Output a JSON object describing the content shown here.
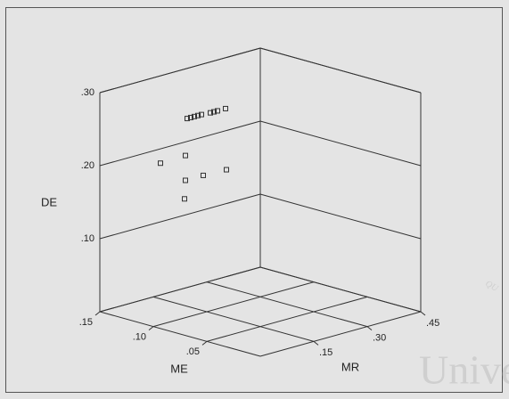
{
  "chart_data": {
    "type": "scatter3d",
    "x_label": "ME",
    "y_label": "MR",
    "z_label": "DE",
    "xlim": [
      0,
      0.15
    ],
    "xticks": [
      {
        "value": 0.15,
        "label": ".15"
      },
      {
        "value": 0.1,
        "label": ".10"
      },
      {
        "value": 0.05,
        "label": ".05"
      }
    ],
    "ylim": [
      0,
      0.45
    ],
    "yticks": [
      {
        "value": 0.15,
        "label": ".15"
      },
      {
        "value": 0.3,
        "label": ".30"
      },
      {
        "value": 0.45,
        "label": ".45"
      }
    ],
    "zlim": [
      0,
      0.3
    ],
    "zticks": [
      {
        "value": 0.3,
        "label": ".30"
      },
      {
        "value": 0.2,
        "label": ".20"
      },
      {
        "value": 0.1,
        "label": ".10"
      }
    ],
    "grid": true,
    "color": "#333333",
    "x": [
      0.1,
      0.1,
      0.1,
      0.1,
      0.1,
      0.1,
      0.1,
      0.1,
      0.1,
      0.1,
      0.1,
      0.1,
      0.1,
      0.1,
      0.1
    ],
    "y": [
      0.02,
      0.09,
      0.205,
      0.14,
      0.09,
      0.0875,
      0.095,
      0.105,
      0.115,
      0.125,
      0.135,
      0.16,
      0.17,
      0.18,
      0.2025
    ],
    "z": [
      0.221,
      0.222,
      0.187,
      0.188,
      0.188,
      0.163,
      0.272,
      0.272,
      0.272,
      0.272,
      0.272,
      0.271,
      0.271,
      0.271,
      0.271
    ],
    "watermark": "Unive",
    "watermark_small": "QU"
  }
}
